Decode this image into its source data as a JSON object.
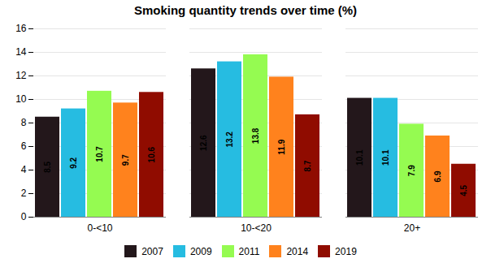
{
  "chart_data": {
    "type": "bar",
    "title": "Smoking quantity trends over time (%)",
    "categories": [
      "0-<10",
      "10-<20",
      "20+"
    ],
    "series": [
      {
        "name": "2007",
        "values": [
          8.5,
          12.6,
          10.1
        ]
      },
      {
        "name": "2009",
        "values": [
          9.2,
          13.2,
          10.1
        ]
      },
      {
        "name": "2011",
        "values": [
          10.7,
          13.8,
          7.9
        ]
      },
      {
        "name": "2014",
        "values": [
          9.7,
          11.9,
          6.9
        ]
      },
      {
        "name": "2019",
        "values": [
          10.6,
          8.7,
          4.5
        ]
      }
    ],
    "ylim": [
      0,
      16
    ],
    "yticks": [
      0,
      2,
      4,
      6,
      8,
      10,
      12,
      14,
      16
    ],
    "grid": true,
    "legend": "bottom",
    "data_labels": true
  }
}
